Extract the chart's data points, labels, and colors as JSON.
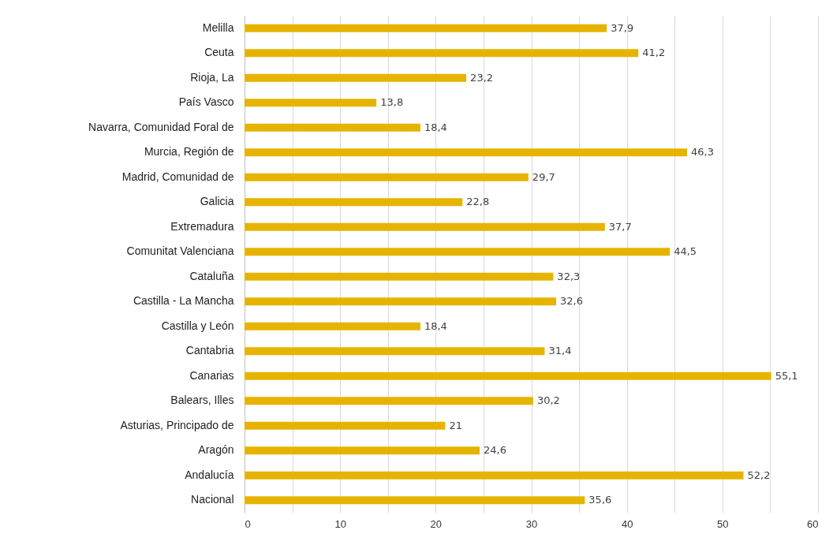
{
  "chart_data": {
    "type": "bar",
    "orientation": "horizontal",
    "categories": [
      "Melilla",
      "Ceuta",
      "Rioja, La",
      "País Vasco",
      "Navarra, Comunidad Foral de",
      "Murcia, Región de",
      "Madrid, Comunidad de",
      "Galicia",
      "Extremadura",
      "Comunitat Valenciana",
      "Cataluña",
      "Castilla - La Mancha",
      "Castilla y León",
      "Cantabria",
      "Canarias",
      "Balears, Illes",
      "Asturias, Principado de",
      "Aragón",
      "Andalucía",
      "Nacional"
    ],
    "values": [
      37.9,
      41.2,
      23.2,
      13.8,
      18.4,
      46.3,
      29.7,
      22.8,
      37.7,
      44.5,
      32.3,
      32.6,
      18.4,
      31.4,
      55.1,
      30.2,
      21,
      24.6,
      52.2,
      35.6
    ],
    "value_labels": [
      "37,9",
      "41,2",
      "23,2",
      "13,8",
      "18,4",
      "46,3",
      "29,7",
      "22,8",
      "37,7",
      "44,5",
      "32,3",
      "32,6",
      "18,4",
      "31,4",
      "55,1",
      "30,2",
      "21",
      "24,6",
      "52,2",
      "35,6"
    ],
    "color": "#e6b400",
    "xlim": [
      0,
      60
    ],
    "xticks": [
      0,
      {
        "value": 5,
        "label": null
      },
      10,
      {
        "value": 15,
        "label": null
      },
      20,
      {
        "value": 25,
        "label": null
      },
      30,
      {
        "value": 35,
        "label": null
      },
      40,
      {
        "value": 45,
        "label": null
      },
      50,
      {
        "value": 55,
        "label": null
      },
      60
    ],
    "grid": "x"
  }
}
